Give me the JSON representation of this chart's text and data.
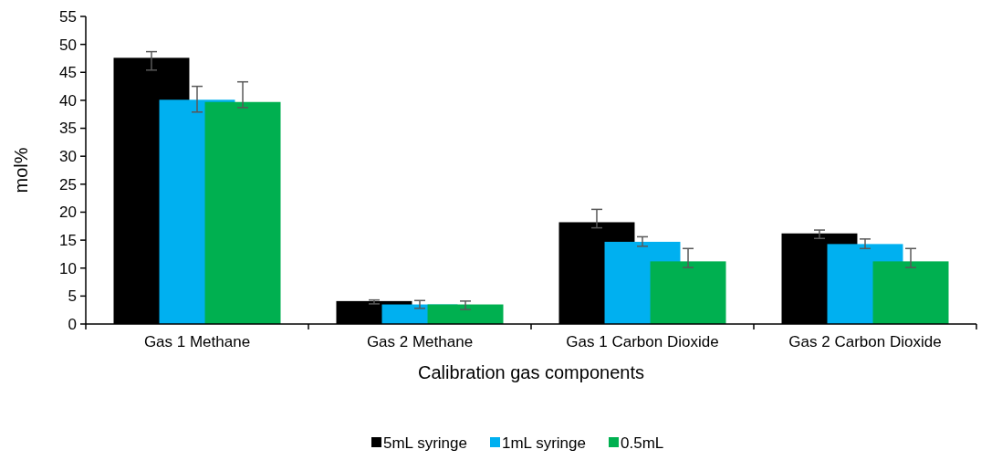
{
  "chart_data": {
    "type": "bar",
    "xlabel": "Calibration gas  components",
    "ylabel": "mol%",
    "categories": [
      "Gas 1 Methane",
      "Gas 2 Methane",
      "Gas 1 Carbon Dioxide",
      "Gas 2 Carbon Dioxide"
    ],
    "series": [
      {
        "name": "5mL syringe",
        "color": "#000000",
        "values": [
          47.6,
          4.1,
          18.2,
          16.2
        ],
        "errors": [
          [
            45.4,
            48.7
          ],
          [
            3.6,
            4.3
          ],
          [
            17.2,
            20.5
          ],
          [
            15.3,
            16.8
          ]
        ]
      },
      {
        "name": "1mL syringe",
        "color": "#00b0f0",
        "values": [
          40.1,
          3.5,
          14.7,
          14.3
        ],
        "errors": [
          [
            37.9,
            42.5
          ],
          [
            2.8,
            4.2
          ],
          [
            13.9,
            15.6
          ],
          [
            13.5,
            15.2
          ]
        ]
      },
      {
        "name": "0.5mL",
        "color": "#00b050",
        "values": [
          39.7,
          3.5,
          11.2,
          11.2
        ],
        "errors": [
          [
            38.7,
            43.3
          ],
          [
            2.6,
            4.1
          ],
          [
            10.1,
            13.5
          ],
          [
            10.1,
            13.5
          ]
        ]
      }
    ],
    "ylim": [
      0,
      55
    ],
    "yticks": [
      0,
      5,
      10,
      15,
      20,
      25,
      30,
      35,
      40,
      45,
      50,
      55
    ],
    "legend": "bottom"
  }
}
